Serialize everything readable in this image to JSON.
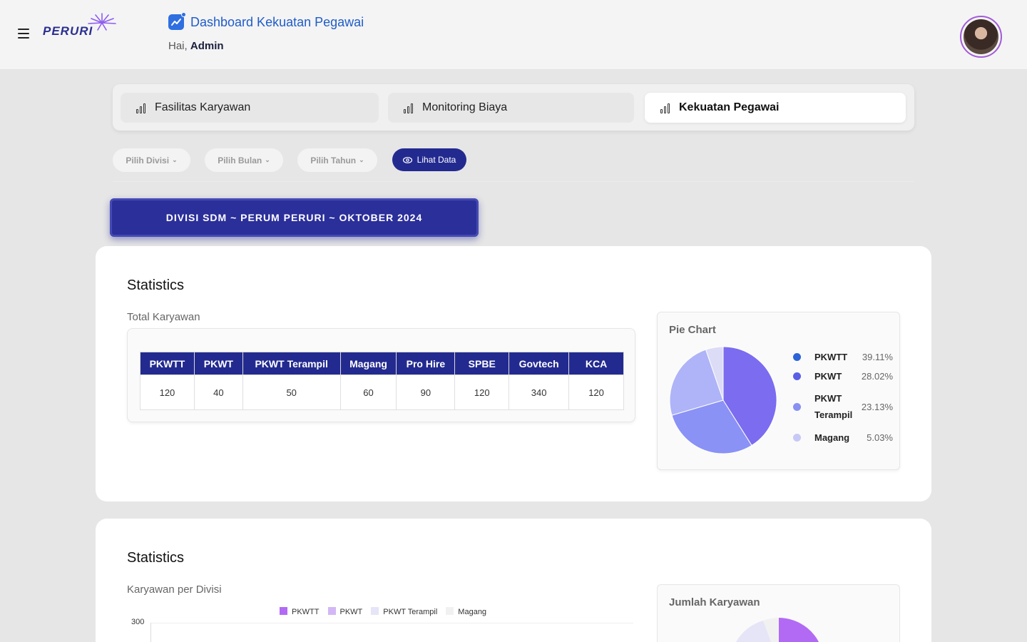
{
  "header": {
    "title": "Dashboard Kekuatan Pegawai",
    "greeting_prefix": "Hai,",
    "user_name": "Admin",
    "logo_text": "PERURI"
  },
  "tabs": [
    {
      "label": "Fasilitas Karyawan",
      "active": false
    },
    {
      "label": "Monitoring Biaya",
      "active": false
    },
    {
      "label": "Kekuatan Pegawai",
      "active": true
    }
  ],
  "filters": {
    "divisi": "Pilih Divisi",
    "bulan": "Pilih Bulan",
    "tahun": "Pilih Tahun",
    "view_button": "Lihat Data"
  },
  "banner": "DIVISI SDM ~ PERUM PERURI ~ OKTOBER 2024",
  "section1": {
    "title": "Statistics",
    "subtitle": "Total Karyawan",
    "table": {
      "headers": [
        "PKWTT",
        "PKWT",
        "PKWT Terampil",
        "Magang",
        "Pro Hire",
        "SPBE",
        "Govtech",
        "KCA"
      ],
      "values": [
        "120",
        "40",
        "50",
        "60",
        "90",
        "120",
        "340",
        "120"
      ]
    },
    "pie": {
      "title": "Pie Chart",
      "legend": [
        {
          "name": "PKWTT",
          "pct": "39.11%",
          "color": "#2d63d8"
        },
        {
          "name": "PKWT",
          "pct": "28.02%",
          "color": "#5a5fe6"
        },
        {
          "name": "PKWT Terampil",
          "pct": "23.13%",
          "color": "#8890f2"
        },
        {
          "name": "Magang",
          "pct": "5.03%",
          "color": "#c7c9f5"
        }
      ]
    }
  },
  "section2": {
    "title": "Statistics",
    "subtitle": "Karyawan per Divisi",
    "legend": [
      {
        "name": "PKWTT",
        "color": "#b26af5"
      },
      {
        "name": "PKWT",
        "color": "#d3b7f5"
      },
      {
        "name": "PKWT Terampil",
        "color": "#e5e5f7"
      },
      {
        "name": "Magang",
        "color": "#f1f1f1"
      }
    ],
    "y_tick_top": "300",
    "pie_title": "Jumlah Karyawan"
  },
  "chart_data": {
    "type": "pie",
    "title": "Pie Chart",
    "categories": [
      "PKWTT",
      "PKWT",
      "PKWT Terampil",
      "Magang"
    ],
    "values": [
      39.11,
      28.02,
      23.13,
      5.03
    ],
    "legend": "right"
  }
}
